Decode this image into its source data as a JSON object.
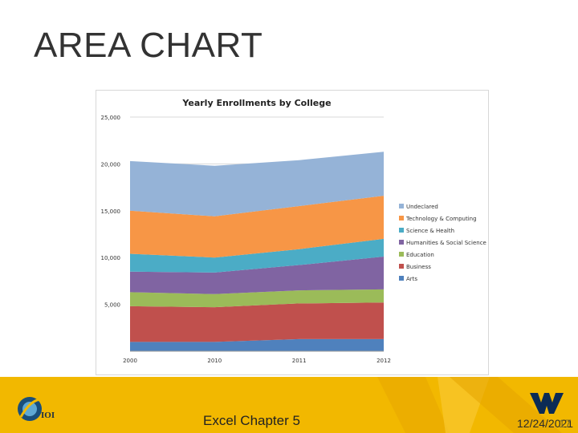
{
  "slide": {
    "title": "AREA CHART",
    "footer_text": "Excel Chapter 5",
    "date": "12/24/2021",
    "page_number": "17",
    "logo_left_text": "IOI"
  },
  "colors": {
    "footer_bg": "#f2b800",
    "footer_accent": "#e8a800"
  },
  "chart_data": {
    "type": "area",
    "stacked": true,
    "title": "Yearly Enrollments by College",
    "x": [
      "2000",
      "2010",
      "2011",
      "2012"
    ],
    "ylim": [
      0,
      25000
    ],
    "yticks": [
      5000,
      10000,
      15000,
      20000,
      25000
    ],
    "ytick_labels": [
      "5,000",
      "10,000",
      "15,000",
      "20,000",
      "25,000"
    ],
    "legend_position": "right",
    "series": [
      {
        "name": "Arts",
        "color": "#4f81bd",
        "values": [
          1000,
          1000,
          1300,
          1300
        ]
      },
      {
        "name": "Business",
        "color": "#c0504d",
        "values": [
          3800,
          3700,
          3800,
          3900
        ]
      },
      {
        "name": "Education",
        "color": "#9bbb59",
        "values": [
          1500,
          1400,
          1400,
          1400
        ]
      },
      {
        "name": "Humanities & Social Science",
        "color": "#8064a2",
        "values": [
          2200,
          2300,
          2700,
          3500
        ]
      },
      {
        "name": "Science & Health",
        "color": "#4bacc6",
        "values": [
          1900,
          1600,
          1700,
          1900
        ]
      },
      {
        "name": "Technology & Computing",
        "color": "#f79646",
        "values": [
          4600,
          4400,
          4600,
          4600
        ]
      },
      {
        "name": "Undeclared",
        "color": "#95b3d7",
        "values": [
          5300,
          5400,
          4900,
          4700
        ]
      }
    ]
  }
}
